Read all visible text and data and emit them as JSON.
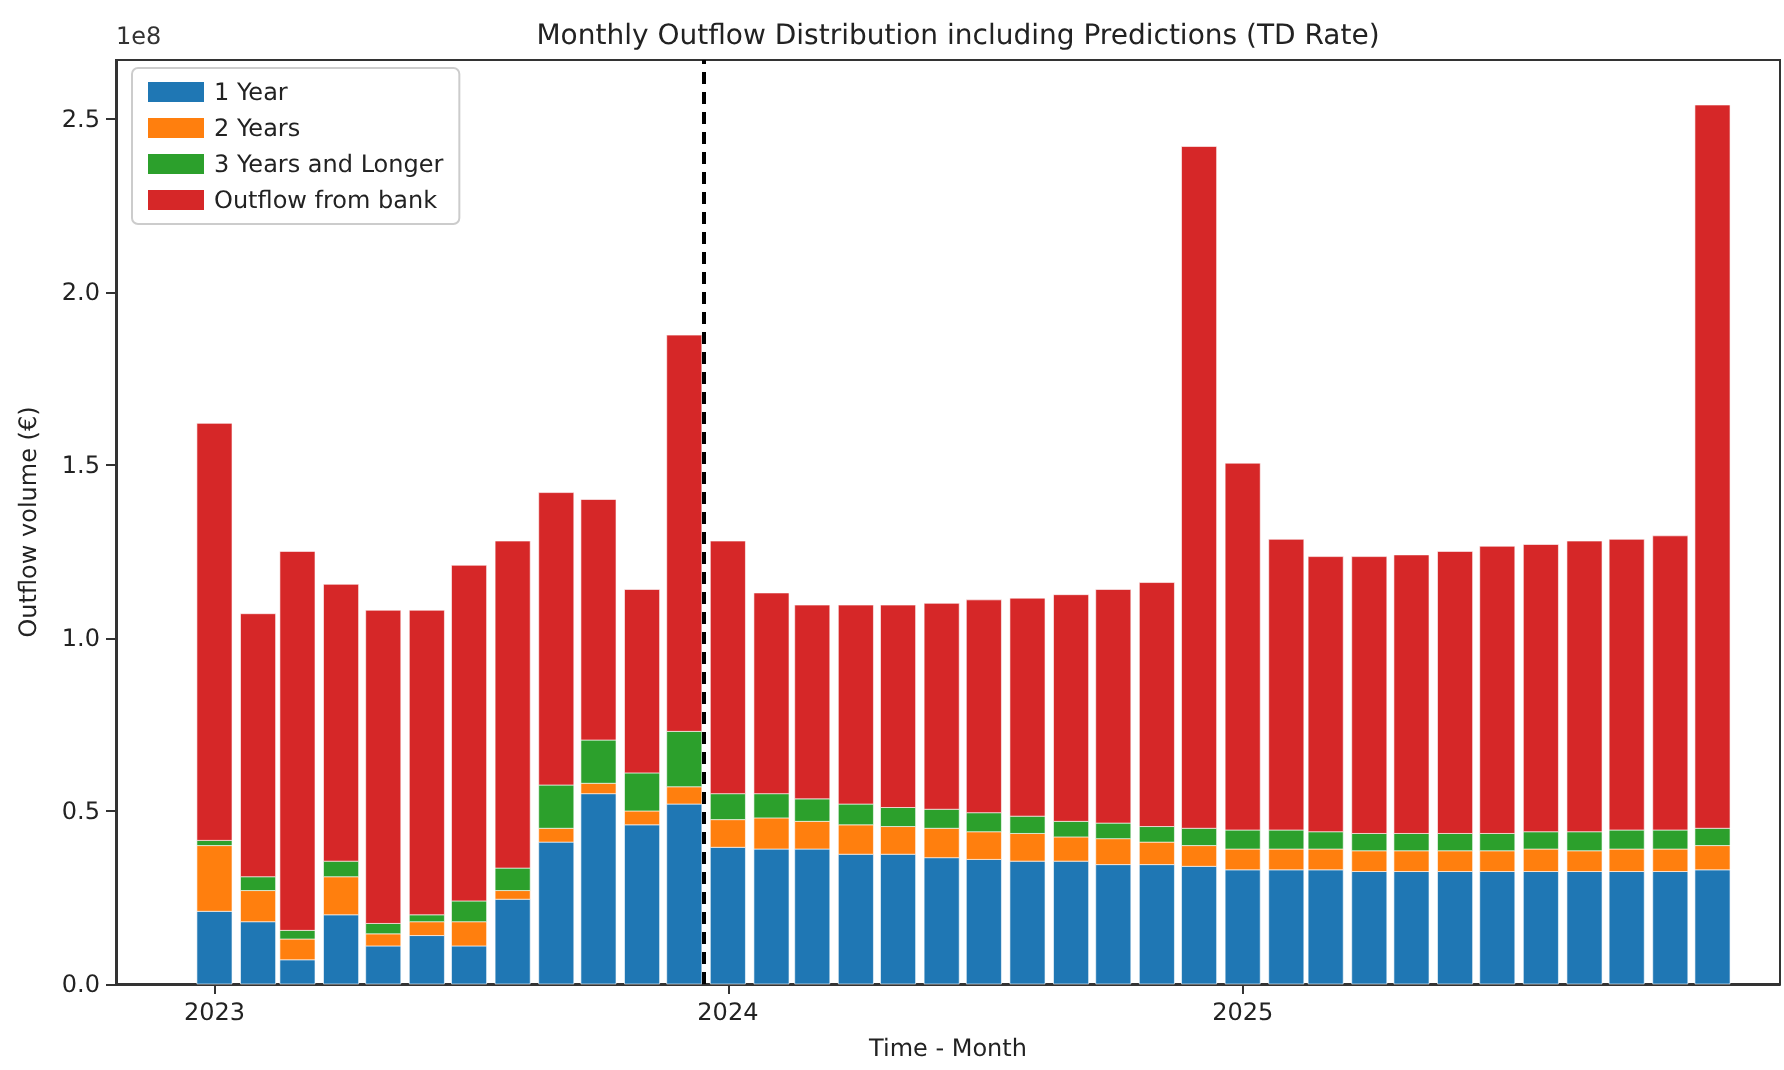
{
  "chart_data": {
    "type": "bar",
    "title": "Monthly Outflow Distribution including Predictions (TD Rate)",
    "xlabel": "Time - Month",
    "ylabel": "Outflow volume (€)",
    "annotations": [
      "1e8"
    ],
    "x": [
      "2023-01",
      "2023-02",
      "2023-03",
      "2023-04",
      "2023-05",
      "2023-06",
      "2023-07",
      "2023-08",
      "2023-09",
      "2023-10",
      "2023-11",
      "2023-12",
      "2024-01",
      "2024-02",
      "2024-03",
      "2024-04",
      "2024-05",
      "2024-06",
      "2024-07",
      "2024-08",
      "2024-09",
      "2024-10",
      "2024-11",
      "2024-12",
      "2025-01",
      "2025-02",
      "2025-03",
      "2025-04",
      "2025-05",
      "2025-06",
      "2025-07",
      "2025-08",
      "2025-09",
      "2025-10",
      "2025-11",
      "2025-12"
    ],
    "stacked": true,
    "series": [
      {
        "name": "1 Year",
        "color": "#1f77b4",
        "values": [
          0.21,
          0.18,
          0.07,
          0.2,
          0.11,
          0.14,
          0.11,
          0.245,
          0.41,
          0.55,
          0.46,
          0.52,
          0.395,
          0.39,
          0.39,
          0.375,
          0.375,
          0.365,
          0.36,
          0.355,
          0.355,
          0.345,
          0.345,
          0.34,
          0.33,
          0.33,
          0.33,
          0.325,
          0.325,
          0.325,
          0.325,
          0.325,
          0.325,
          0.325,
          0.325,
          0.33
        ]
      },
      {
        "name": "2 Years",
        "color": "#ff7f0e",
        "values": [
          0.19,
          0.09,
          0.06,
          0.11,
          0.035,
          0.04,
          0.07,
          0.025,
          0.04,
          0.03,
          0.04,
          0.05,
          0.08,
          0.09,
          0.08,
          0.085,
          0.08,
          0.085,
          0.08,
          0.08,
          0.07,
          0.075,
          0.065,
          0.06,
          0.06,
          0.06,
          0.06,
          0.06,
          0.06,
          0.06,
          0.06,
          0.065,
          0.06,
          0.065,
          0.065,
          0.07
        ]
      },
      {
        "name": "3 Years and Longer",
        "color": "#2ca02c",
        "values": [
          0.015,
          0.04,
          0.025,
          0.045,
          0.03,
          0.02,
          0.06,
          0.065,
          0.125,
          0.125,
          0.11,
          0.16,
          0.075,
          0.07,
          0.065,
          0.06,
          0.055,
          0.055,
          0.055,
          0.05,
          0.045,
          0.045,
          0.045,
          0.05,
          0.055,
          0.055,
          0.05,
          0.05,
          0.05,
          0.05,
          0.05,
          0.05,
          0.055,
          0.055,
          0.055,
          0.05
        ]
      },
      {
        "name": "Outflow from bank",
        "color": "#d62728",
        "values": [
          1.205,
          0.76,
          1.095,
          0.8,
          0.905,
          0.88,
          0.97,
          0.945,
          0.845,
          0.695,
          0.53,
          1.145,
          0.73,
          0.58,
          0.56,
          0.575,
          0.585,
          0.595,
          0.615,
          0.63,
          0.655,
          0.675,
          0.705,
          1.97,
          1.06,
          0.84,
          0.795,
          0.8,
          0.805,
          0.815,
          0.83,
          0.83,
          0.84,
          0.84,
          0.85,
          2.09
        ]
      }
    ],
    "xlim": [
      "2022-10-23",
      "2026-01-18"
    ],
    "xticks": [
      {
        "value": "2023-01",
        "label": "2023"
      },
      {
        "value": "2024-01",
        "label": "2024"
      },
      {
        "value": "2025-01",
        "label": "2025"
      }
    ],
    "ylim": [
      0,
      2.67
    ],
    "yticks": [
      {
        "value": 0,
        "label": "0.0"
      },
      {
        "value": 0.5,
        "label": "0.5"
      },
      {
        "value": 1,
        "label": "1.0"
      },
      {
        "value": 1.5,
        "label": "1.5"
      },
      {
        "value": 2,
        "label": "2.0"
      },
      {
        "value": 2.5,
        "label": "2.5"
      }
    ],
    "ref_lines": [
      {
        "axis": "x",
        "value": "2023-12-14",
        "color": "#000000",
        "line_style": "dashed"
      }
    ],
    "legend": "top left",
    "grid": false
  }
}
